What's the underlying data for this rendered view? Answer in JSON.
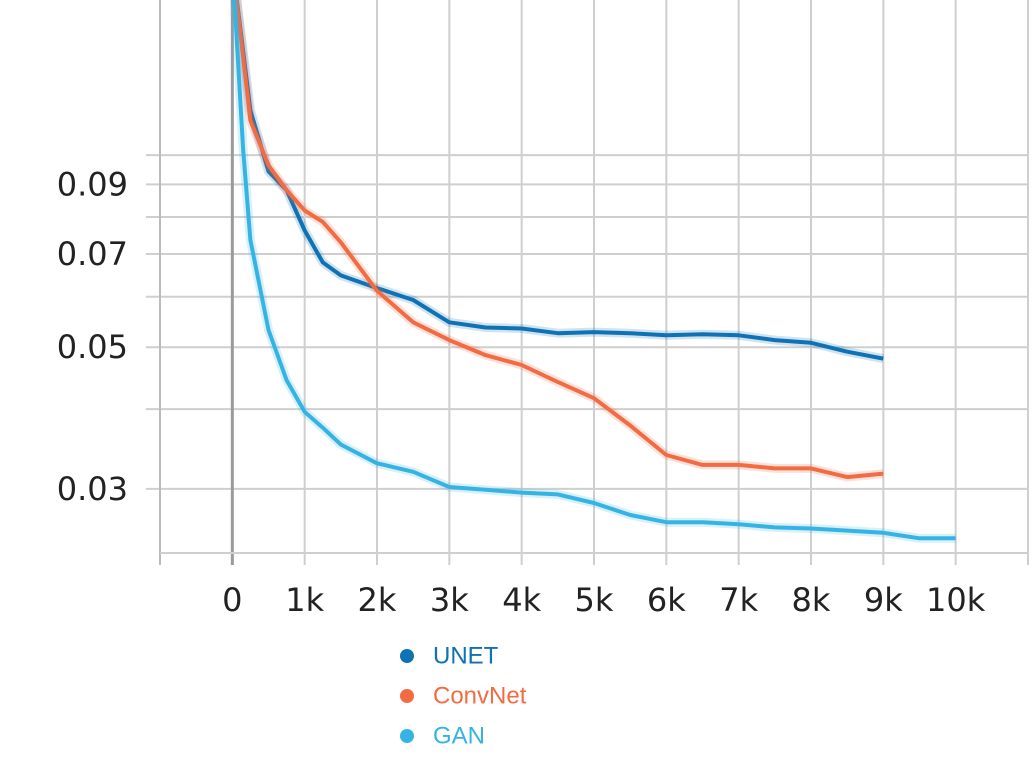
{
  "chart_data": {
    "type": "line",
    "log_y": true,
    "grid": true,
    "xlim": [
      -1000,
      11000
    ],
    "xticks": [
      0,
      {
        "value": 1000,
        "label": "1k"
      },
      {
        "value": 2000,
        "label": "2k"
      },
      {
        "value": 3000,
        "label": "3k"
      },
      {
        "value": 4000,
        "label": "4k"
      },
      {
        "value": 5000,
        "label": "5k"
      },
      {
        "value": 6000,
        "label": "6k"
      },
      {
        "value": 7000,
        "label": "7k"
      },
      {
        "value": 8000,
        "label": "8k"
      },
      {
        "value": 9000,
        "label": "9k"
      },
      {
        "value": 10000,
        "label": "10k"
      }
    ],
    "ylim": [
      0.0238,
      0.175
    ],
    "yticks": [
      0.03,
      0.05,
      0.07,
      0.09
    ],
    "yminor": [
      0.04,
      0.06,
      0.08,
      0.1
    ],
    "series": [
      {
        "name": "UNET",
        "color": "#0f72b4",
        "x": [
          0,
          250,
          500,
          750,
          1000,
          1250,
          1500,
          2000,
          2500,
          3000,
          3500,
          4000,
          4500,
          5000,
          5500,
          6000,
          6500,
          7000,
          7500,
          8000,
          8500,
          9000
        ],
        "values": [
          0.2,
          0.1175,
          0.0943,
          0.0881,
          0.0762,
          0.0679,
          0.0648,
          0.0619,
          0.0593,
          0.0547,
          0.0537,
          0.0535,
          0.0526,
          0.0528,
          0.0526,
          0.0522,
          0.0524,
          0.0522,
          0.0513,
          0.0508,
          0.0492,
          0.048
        ]
      },
      {
        "name": "ConvNet",
        "color": "#f26b43",
        "x": [
          0,
          250,
          500,
          750,
          1000,
          1250,
          1500,
          2000,
          2500,
          3000,
          3500,
          4000,
          4500,
          5000,
          5500,
          6000,
          6500,
          7000,
          7500,
          8000,
          8500,
          9000
        ],
        "values": [
          0.2,
          0.1133,
          0.0964,
          0.0881,
          0.0819,
          0.0786,
          0.073,
          0.0613,
          0.0547,
          0.0513,
          0.0486,
          0.0469,
          0.0441,
          0.0416,
          0.0377,
          0.0339,
          0.0327,
          0.0327,
          0.0323,
          0.0323,
          0.0313,
          0.0317
        ]
      },
      {
        "name": "GAN",
        "color": "#35b4e4",
        "x": [
          0,
          150,
          250,
          500,
          750,
          1000,
          1250,
          1500,
          2000,
          2500,
          3000,
          3500,
          4000,
          4500,
          5000,
          5500,
          6000,
          6500,
          7000,
          7500,
          8000,
          8500,
          9000,
          9500,
          10000
        ],
        "values": [
          0.2,
          0.1017,
          0.0736,
          0.0532,
          0.0444,
          0.0396,
          0.0374,
          0.0352,
          0.0329,
          0.0319,
          0.0302,
          0.0299,
          0.0296,
          0.0294,
          0.0285,
          0.0273,
          0.0266,
          0.0266,
          0.0264,
          0.0261,
          0.026,
          0.0258,
          0.0256,
          0.0251,
          0.0251
        ]
      }
    ]
  }
}
